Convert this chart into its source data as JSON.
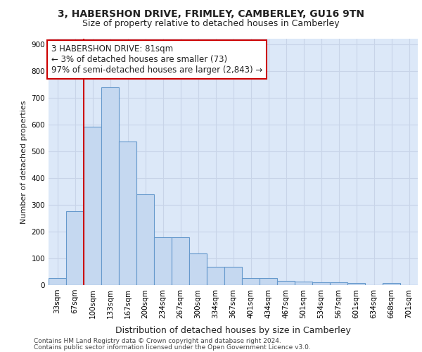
{
  "title_line1": "3, HABERSHON DRIVE, FRIMLEY, CAMBERLEY, GU16 9TN",
  "title_line2": "Size of property relative to detached houses in Camberley",
  "xlabel": "Distribution of detached houses by size in Camberley",
  "ylabel": "Number of detached properties",
  "categories": [
    "33sqm",
    "67sqm",
    "100sqm",
    "133sqm",
    "167sqm",
    "200sqm",
    "234sqm",
    "267sqm",
    "300sqm",
    "334sqm",
    "367sqm",
    "401sqm",
    "434sqm",
    "467sqm",
    "501sqm",
    "534sqm",
    "567sqm",
    "601sqm",
    "634sqm",
    "668sqm",
    "701sqm"
  ],
  "values": [
    25,
    275,
    592,
    738,
    535,
    338,
    178,
    178,
    118,
    68,
    68,
    25,
    25,
    15,
    12,
    10,
    10,
    8,
    0,
    8,
    0
  ],
  "bar_color": "#c5d8f0",
  "bar_edge_color": "#6699cc",
  "annotation_text": "3 HABERSHON DRIVE: 81sqm\n← 3% of detached houses are smaller (73)\n97% of semi-detached houses are larger (2,843) →",
  "annotation_box_facecolor": "#ffffff",
  "annotation_box_edgecolor": "#cc0000",
  "property_line_color": "#cc0000",
  "grid_color": "#c8d4e8",
  "background_color": "#dce8f8",
  "footer_line1": "Contains HM Land Registry data © Crown copyright and database right 2024.",
  "footer_line2": "Contains public sector information licensed under the Open Government Licence v3.0.",
  "ylim": [
    0,
    920
  ],
  "yticks": [
    0,
    100,
    200,
    300,
    400,
    500,
    600,
    700,
    800,
    900
  ],
  "title1_fontsize": 10,
  "title2_fontsize": 9,
  "ylabel_fontsize": 8,
  "xlabel_fontsize": 9,
  "tick_fontsize": 7.5,
  "footer_fontsize": 6.5
}
